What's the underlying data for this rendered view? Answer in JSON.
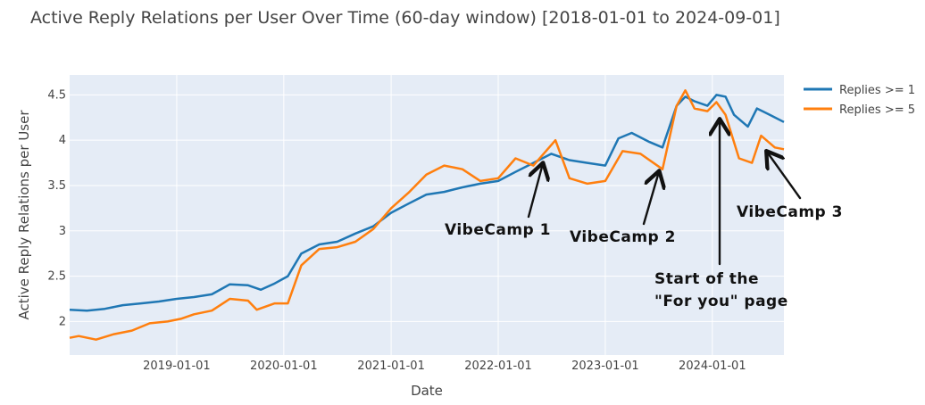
{
  "chart_data": {
    "type": "line",
    "title": "Active Reply Relations per User Over Time (60-day window) [2018-01-01 to 2024-09-01]",
    "xlabel": "Date",
    "ylabel": "Active Reply Relations per User",
    "xlim": [
      "2018-01-01",
      "2024-09-01"
    ],
    "ylim": [
      1.63,
      4.72
    ],
    "x_ticks": [
      "2019-01-01",
      "2020-01-01",
      "2021-01-01",
      "2022-01-01",
      "2023-01-01",
      "2024-01-01"
    ],
    "y_ticks": [
      2,
      2.5,
      3,
      3.5,
      4,
      4.5
    ],
    "y_tick_labels": [
      "2",
      "2.5",
      "3",
      "3.5",
      "4",
      "4.5"
    ],
    "legend_position": "top-right",
    "colors": {
      "plot_bg": "#e5ecf6",
      "grid": "#ffffff"
    },
    "series": [
      {
        "name": "Replies >= 1",
        "color": "#1f77b4",
        "points": [
          [
            "2018-01-01",
            2.13
          ],
          [
            "2018-03-01",
            2.12
          ],
          [
            "2018-05-01",
            2.14
          ],
          [
            "2018-07-01",
            2.18
          ],
          [
            "2018-09-01",
            2.2
          ],
          [
            "2018-11-01",
            2.22
          ],
          [
            "2019-01-01",
            2.25
          ],
          [
            "2019-03-01",
            2.27
          ],
          [
            "2019-05-01",
            2.3
          ],
          [
            "2019-07-01",
            2.41
          ],
          [
            "2019-09-01",
            2.4
          ],
          [
            "2019-10-15",
            2.35
          ],
          [
            "2019-12-01",
            2.42
          ],
          [
            "2020-01-15",
            2.5
          ],
          [
            "2020-03-01",
            2.75
          ],
          [
            "2020-05-01",
            2.85
          ],
          [
            "2020-07-01",
            2.88
          ],
          [
            "2020-09-01",
            2.97
          ],
          [
            "2020-11-01",
            3.05
          ],
          [
            "2021-01-01",
            3.2
          ],
          [
            "2021-03-01",
            3.3
          ],
          [
            "2021-05-01",
            3.4
          ],
          [
            "2021-07-01",
            3.43
          ],
          [
            "2021-09-01",
            3.48
          ],
          [
            "2021-11-01",
            3.52
          ],
          [
            "2022-01-01",
            3.55
          ],
          [
            "2022-03-01",
            3.65
          ],
          [
            "2022-05-01",
            3.75
          ],
          [
            "2022-07-01",
            3.85
          ],
          [
            "2022-09-01",
            3.78
          ],
          [
            "2022-11-01",
            3.75
          ],
          [
            "2023-01-01",
            3.72
          ],
          [
            "2023-02-15",
            4.02
          ],
          [
            "2023-04-01",
            4.08
          ],
          [
            "2023-06-01",
            3.98
          ],
          [
            "2023-07-15",
            3.92
          ],
          [
            "2023-09-01",
            4.38
          ],
          [
            "2023-10-01",
            4.48
          ],
          [
            "2023-11-01",
            4.43
          ],
          [
            "2023-12-15",
            4.38
          ],
          [
            "2024-01-15",
            4.5
          ],
          [
            "2024-02-15",
            4.48
          ],
          [
            "2024-03-15",
            4.28
          ],
          [
            "2024-05-01",
            4.15
          ],
          [
            "2024-06-01",
            4.35
          ],
          [
            "2024-07-15",
            4.28
          ],
          [
            "2024-09-01",
            4.2
          ]
        ]
      },
      {
        "name": "Replies >= 5",
        "color": "#ff7f0e",
        "points": [
          [
            "2018-01-01",
            1.82
          ],
          [
            "2018-02-01",
            1.84
          ],
          [
            "2018-04-01",
            1.8
          ],
          [
            "2018-06-01",
            1.86
          ],
          [
            "2018-08-01",
            1.9
          ],
          [
            "2018-10-01",
            1.98
          ],
          [
            "2018-12-01",
            2.0
          ],
          [
            "2019-01-15",
            2.03
          ],
          [
            "2019-03-01",
            2.08
          ],
          [
            "2019-05-01",
            2.12
          ],
          [
            "2019-07-01",
            2.25
          ],
          [
            "2019-09-01",
            2.23
          ],
          [
            "2019-10-01",
            2.13
          ],
          [
            "2019-12-01",
            2.2
          ],
          [
            "2020-01-15",
            2.2
          ],
          [
            "2020-03-01",
            2.62
          ],
          [
            "2020-05-01",
            2.8
          ],
          [
            "2020-07-01",
            2.82
          ],
          [
            "2020-09-01",
            2.88
          ],
          [
            "2020-11-01",
            3.02
          ],
          [
            "2021-01-01",
            3.25
          ],
          [
            "2021-03-01",
            3.42
          ],
          [
            "2021-05-01",
            3.62
          ],
          [
            "2021-07-01",
            3.72
          ],
          [
            "2021-09-01",
            3.68
          ],
          [
            "2021-11-01",
            3.55
          ],
          [
            "2022-01-01",
            3.58
          ],
          [
            "2022-03-01",
            3.8
          ],
          [
            "2022-05-01",
            3.72
          ],
          [
            "2022-07-15",
            4.0
          ],
          [
            "2022-09-01",
            3.58
          ],
          [
            "2022-11-01",
            3.52
          ],
          [
            "2023-01-01",
            3.55
          ],
          [
            "2023-03-01",
            3.88
          ],
          [
            "2023-05-01",
            3.85
          ],
          [
            "2023-07-15",
            3.68
          ],
          [
            "2023-09-01",
            4.38
          ],
          [
            "2023-10-01",
            4.55
          ],
          [
            "2023-11-01",
            4.35
          ],
          [
            "2023-12-15",
            4.32
          ],
          [
            "2024-01-15",
            4.42
          ],
          [
            "2024-02-15",
            4.28
          ],
          [
            "2024-04-01",
            3.8
          ],
          [
            "2024-05-15",
            3.75
          ],
          [
            "2024-06-15",
            4.05
          ],
          [
            "2024-08-01",
            3.92
          ],
          [
            "2024-09-01",
            3.9
          ]
        ]
      }
    ],
    "annotations": [
      {
        "text": "VibeCamp 1",
        "target": [
          "2022-07-15",
          3.78
        ]
      },
      {
        "text": "VibeCamp 2",
        "target": [
          "2023-07-15",
          3.68
        ]
      },
      {
        "text": "Start of the",
        "text2": "\"For you\" page",
        "target": [
          "2024-01-01",
          4.28
        ]
      },
      {
        "text": "VibeCamp 3",
        "target": [
          "2024-06-01",
          3.92
        ]
      }
    ]
  }
}
